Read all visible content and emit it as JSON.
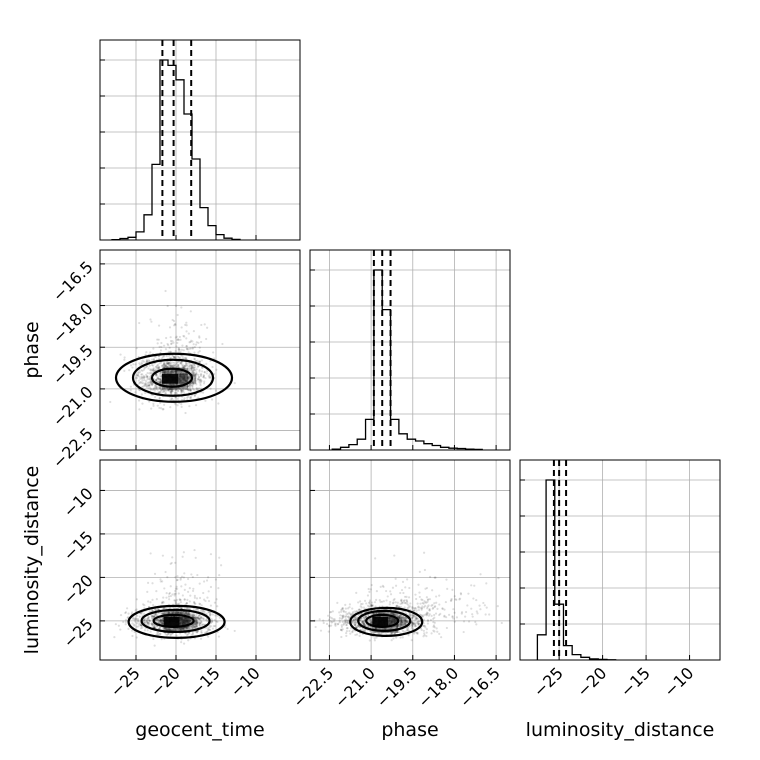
{
  "chart_data": {
    "type": "corner",
    "parameters": [
      "geocent_time",
      "phase",
      "luminosity_distance"
    ],
    "axis_labels": {
      "geocent_time": "geocent_time",
      "phase": "phase",
      "luminosity_distance": "luminosity_distance"
    },
    "grid": true,
    "ranges": {
      "geocent_time": [
        -29.5,
        -4.5
      ],
      "phase": [
        -23.2,
        -16.0
      ],
      "luminosity_distance": [
        -29.5,
        -6.5
      ]
    },
    "ticks": {
      "geocent_time": [
        "-25",
        "-20",
        "-15",
        "-10"
      ],
      "phase": [
        "-22.5",
        "-21.0",
        "-19.5",
        "-18.0",
        "-16.5"
      ],
      "luminosity_distance": [
        "-25",
        "-20",
        "-15",
        "-10"
      ]
    },
    "quantiles": {
      "geocent_time": [
        -21.7,
        -20.3,
        -18.1
      ],
      "phase": [
        -20.9,
        -20.6,
        -20.3
      ],
      "luminosity_distance": [
        -25.6,
        -25.0,
        -24.2
      ]
    },
    "histograms": {
      "geocent_time": {
        "edges": [
          -28.0,
          -27.0,
          -26.0,
          -25.0,
          -24.0,
          -23.0,
          -22.0,
          -21.0,
          -20.0,
          -19.0,
          -18.0,
          -17.0,
          -16.0,
          -15.0,
          -14.0,
          -13.0,
          -12.0
        ],
        "counts": [
          0.2,
          0.8,
          1.5,
          4.5,
          14,
          42,
          100,
          97,
          89,
          70,
          45,
          18,
          8,
          3,
          1,
          0.3
        ]
      },
      "phase": {
        "edges": [
          -22.4,
          -22.1,
          -21.8,
          -21.5,
          -21.2,
          -20.9,
          -20.6,
          -20.3,
          -20.0,
          -19.7,
          -19.4,
          -19.1,
          -18.8,
          -18.5,
          -18.2,
          -17.9,
          -17.6,
          -17.3,
          -17.0
        ],
        "counts": [
          0.5,
          1.5,
          3,
          6,
          17,
          100,
          78,
          17,
          9,
          6,
          5,
          3.5,
          2.5,
          1.5,
          1,
          0.8,
          0.5,
          0.3
        ]
      },
      "luminosity_distance": {
        "edges": [
          -27.5,
          -26.5,
          -25.5,
          -24.5,
          -23.5,
          -22.5,
          -21.5,
          -20.5,
          -19.5,
          -18.5
        ],
        "counts": [
          14,
          100,
          31,
          8,
          3,
          1.5,
          0.6,
          0.3,
          0.1
        ]
      }
    },
    "joint_centers": {
      "phase_vs_geocent_time": {
        "x": -20.5,
        "y": -20.6
      },
      "luminosity_distance_vs_geocent_time": {
        "x": -20.3,
        "y": -25.0
      },
      "luminosity_distance_vs_phase": {
        "x": -20.6,
        "y": -25.0
      }
    }
  }
}
